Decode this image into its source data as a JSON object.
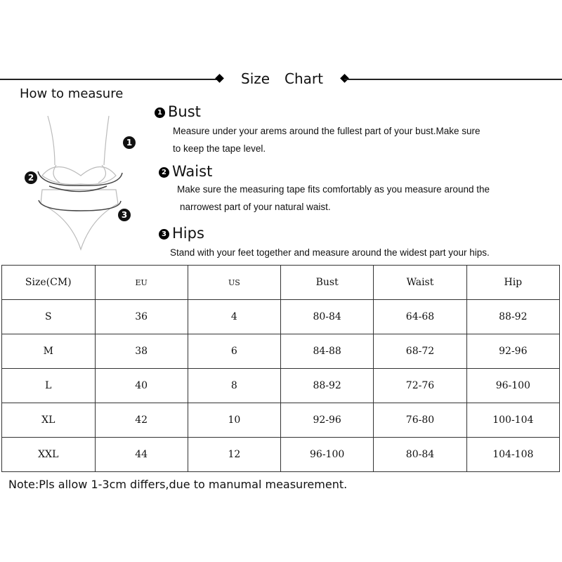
{
  "title": {
    "word1": "Size",
    "word2": "Chart"
  },
  "how_to_measure": "How to measure",
  "diagram_badges": [
    "1",
    "2",
    "3"
  ],
  "sections": [
    {
      "num": "1",
      "heading": "Bust",
      "lines": [
        "Measure under your arems around the fullest part of your bust.Make sure",
        "to keep the tape level."
      ]
    },
    {
      "num": "2",
      "heading": "Waist",
      "lines": [
        "Make sure the measuring tape fits comfortably as you measure around the",
        "narrowest part of your natural waist."
      ]
    },
    {
      "num": "3",
      "heading": "Hips",
      "lines": [
        "Stand with your feet together and measure around the widest part your hips."
      ]
    }
  ],
  "table": {
    "headers": [
      "Size(CM)",
      "EU",
      "US",
      "Bust",
      "Waist",
      "Hip"
    ],
    "rows": [
      [
        "S",
        "36",
        "4",
        "80-84",
        "64-68",
        "88-92"
      ],
      [
        "M",
        "38",
        "6",
        "84-88",
        "68-72",
        "92-96"
      ],
      [
        "L",
        "40",
        "8",
        "88-92",
        "72-76",
        "96-100"
      ],
      [
        "XL",
        "42",
        "10",
        "92-96",
        "76-80",
        "100-104"
      ],
      [
        "XXL",
        "44",
        "12",
        "96-100",
        "80-84",
        "104-108"
      ]
    ]
  },
  "note": "Note:Pls allow 1-3cm differs,due to manumal measurement."
}
